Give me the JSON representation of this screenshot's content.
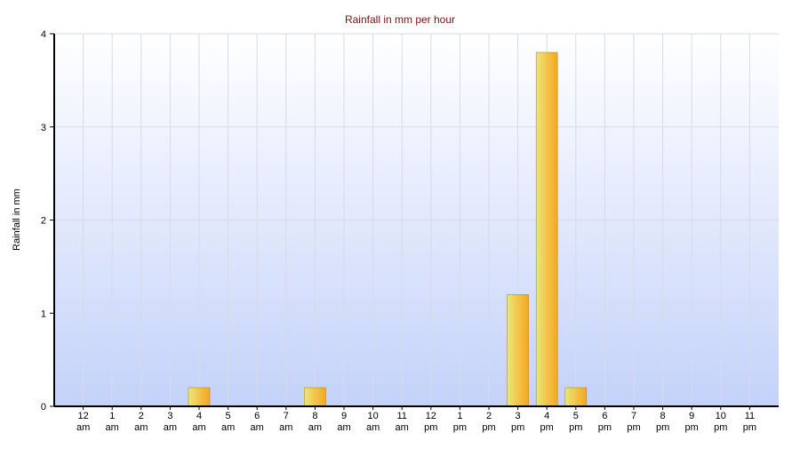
{
  "chart_data": {
    "type": "bar",
    "title": "Rainfall in mm per hour",
    "y_label": "Rainfall in mm",
    "categories": [
      "12 am",
      "1 am",
      "2 am",
      "3 am",
      "4 am",
      "5 am",
      "6 am",
      "7 am",
      "8 am",
      "9 am",
      "10 am",
      "11 am",
      "12 pm",
      "1 pm",
      "2 pm",
      "3 pm",
      "4 pm",
      "5 pm",
      "6 pm",
      "7 pm",
      "8 pm",
      "9 pm",
      "10 pm",
      "11 pm"
    ],
    "values": [
      0,
      0,
      0,
      0,
      0.2,
      0,
      0,
      0,
      0.2,
      0,
      0,
      0,
      0,
      0,
      0,
      1.2,
      3.8,
      0.2,
      0,
      0,
      0,
      0,
      0,
      0
    ],
    "color": "#f5b030",
    "ylim": [
      0,
      4
    ],
    "yticks": [
      0,
      1,
      2,
      3,
      4
    ],
    "grid": true
  }
}
